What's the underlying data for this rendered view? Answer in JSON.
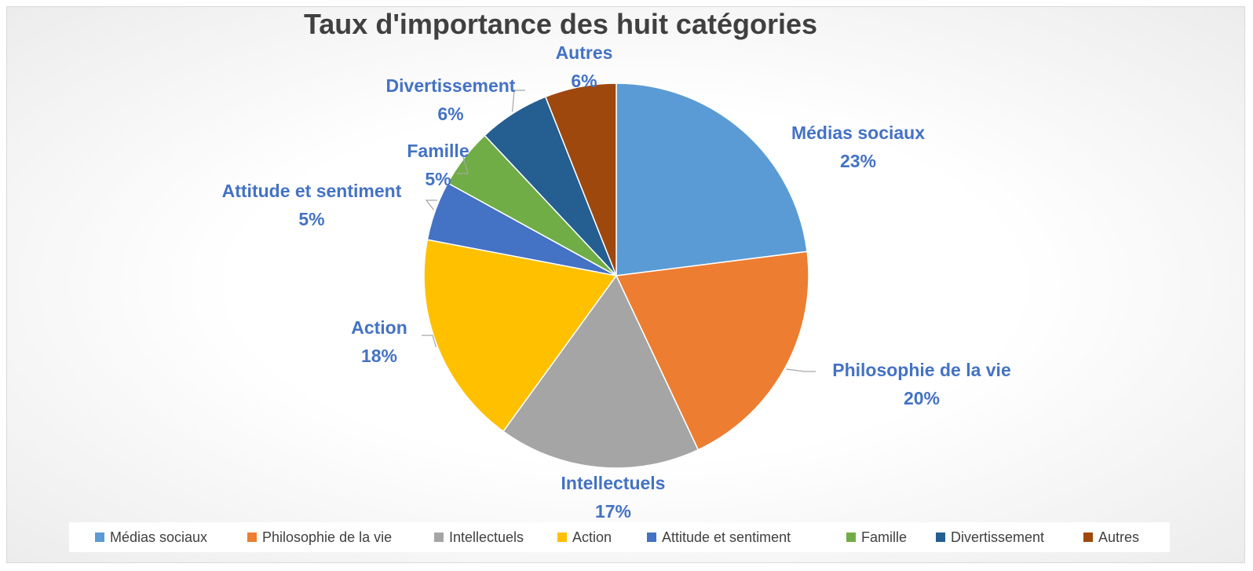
{
  "chart_data": {
    "type": "pie",
    "title": "Taux d'importance des huit catégories",
    "categories": [
      "Médias sociaux",
      "Philosophie de la vie",
      "Intellectuels",
      "Action",
      "Attitude et sentiment",
      "Famille",
      "Divertissement",
      "Autres"
    ],
    "values": [
      23,
      20,
      17,
      18,
      5,
      5,
      6,
      6
    ],
    "value_labels": [
      "23%",
      "20%",
      "17%",
      "18%",
      "5%",
      "5%",
      "6%",
      "6%"
    ],
    "colors": [
      "#5b9bd5",
      "#ed7d31",
      "#a5a5a5",
      "#ffc000",
      "#4472c4",
      "#70ad47",
      "#255e91",
      "#9e480e"
    ],
    "legend_position": "bottom",
    "unit": "%"
  }
}
